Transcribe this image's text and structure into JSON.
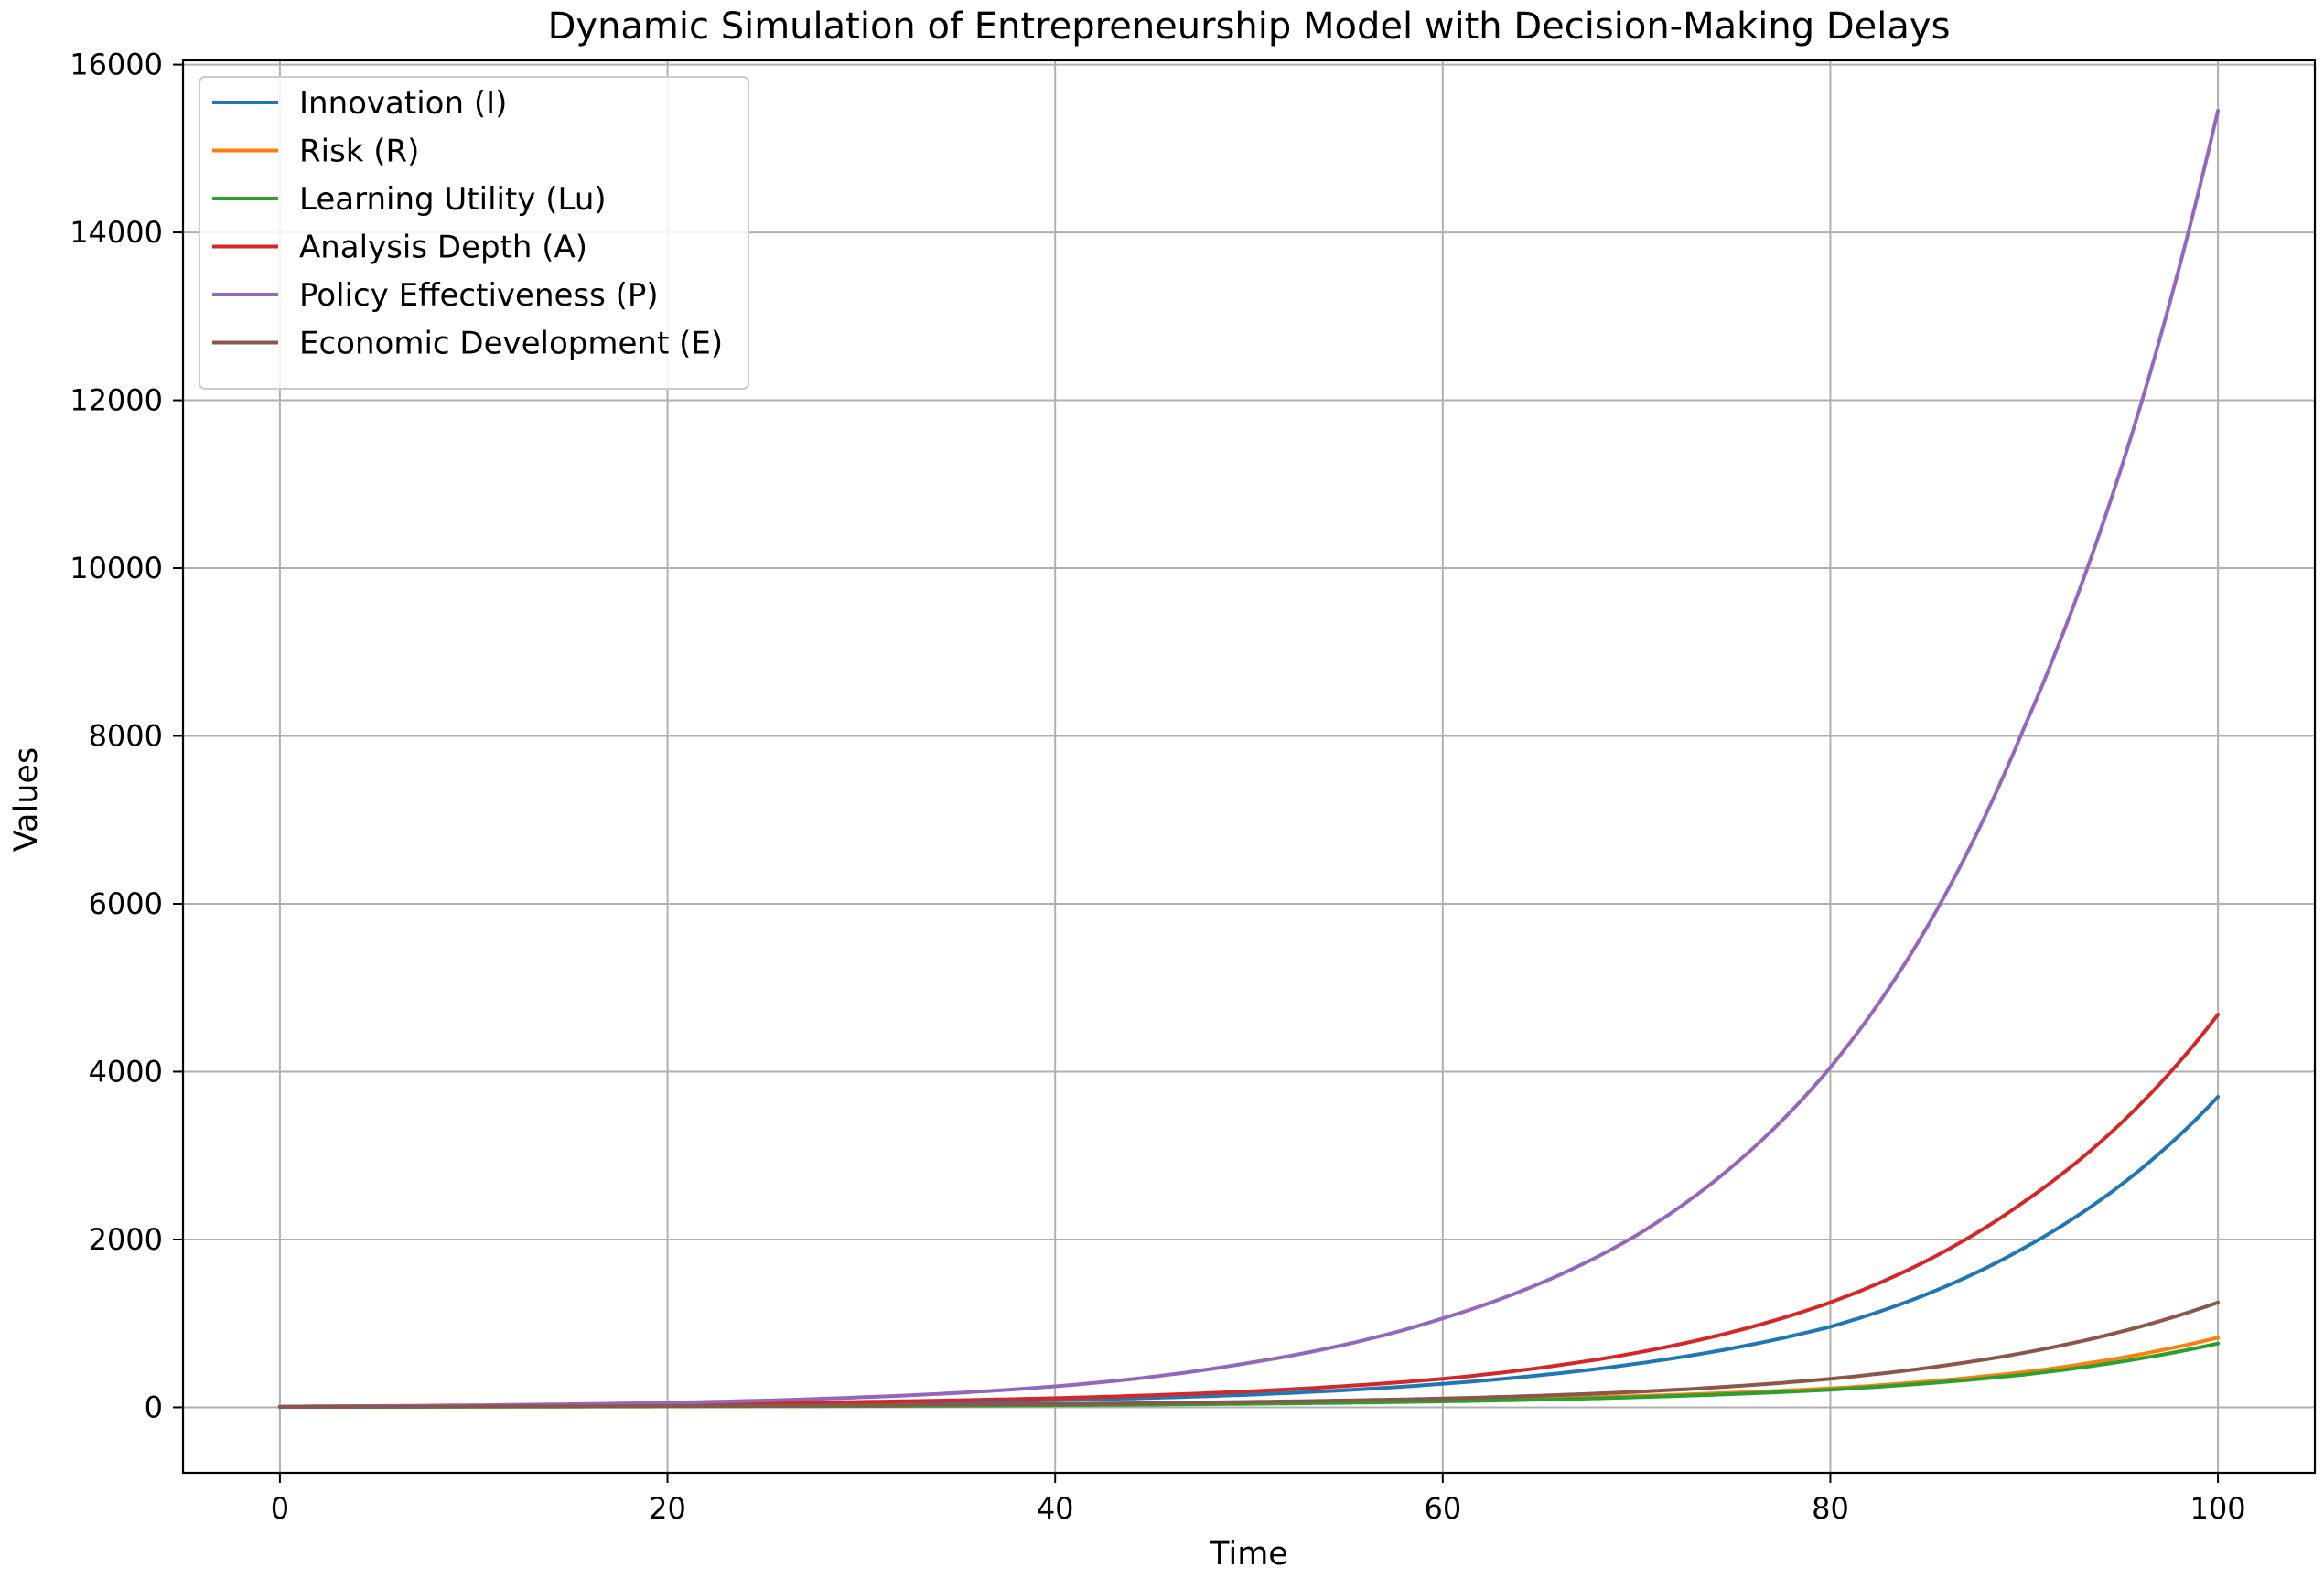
{
  "chart_data": {
    "type": "line",
    "title": "Dynamic Simulation of Entrepreneurship Model with Decision-Making Delays",
    "xlabel": "Time",
    "ylabel": "Values",
    "xlim": [
      -5,
      105
    ],
    "ylim": [
      -780,
      16050
    ],
    "xticks": [
      0,
      20,
      40,
      60,
      80,
      100
    ],
    "yticks": [
      0,
      2000,
      4000,
      6000,
      8000,
      10000,
      12000,
      14000,
      16000
    ],
    "grid": true,
    "legend_position": "top-left",
    "x": [
      0,
      10,
      20,
      30,
      40,
      50,
      60,
      70,
      80,
      90,
      100
    ],
    "series": [
      {
        "name": "Innovation (I)",
        "color": "#1f77b4",
        "values": [
          10,
          15,
          25,
          50,
          85,
          150,
          280,
          520,
          960,
          1900,
          3700
        ]
      },
      {
        "name": "Risk (R)",
        "color": "#ff7f0e",
        "values": [
          5,
          8,
          12,
          18,
          30,
          50,
          85,
          135,
          225,
          420,
          830
        ]
      },
      {
        "name": "Learning Utility (Lu)",
        "color": "#2ca02c",
        "values": [
          5,
          7,
          10,
          15,
          25,
          42,
          70,
          120,
          210,
          390,
          760
        ]
      },
      {
        "name": "Analysis Depth (A)",
        "color": "#d62728",
        "values": [
          10,
          18,
          35,
          65,
          110,
          190,
          340,
          650,
          1250,
          2450,
          4680
        ]
      },
      {
        "name": "Policy Effectiveness (P)",
        "color": "#9467bd",
        "values": [
          10,
          25,
          55,
          120,
          250,
          530,
          1060,
          2050,
          4050,
          8100,
          15450
        ]
      },
      {
        "name": "Economic Development (E)",
        "color": "#8c564b",
        "values": [
          5,
          10,
          15,
          25,
          40,
          65,
          105,
          185,
          340,
          650,
          1250
        ]
      }
    ]
  }
}
